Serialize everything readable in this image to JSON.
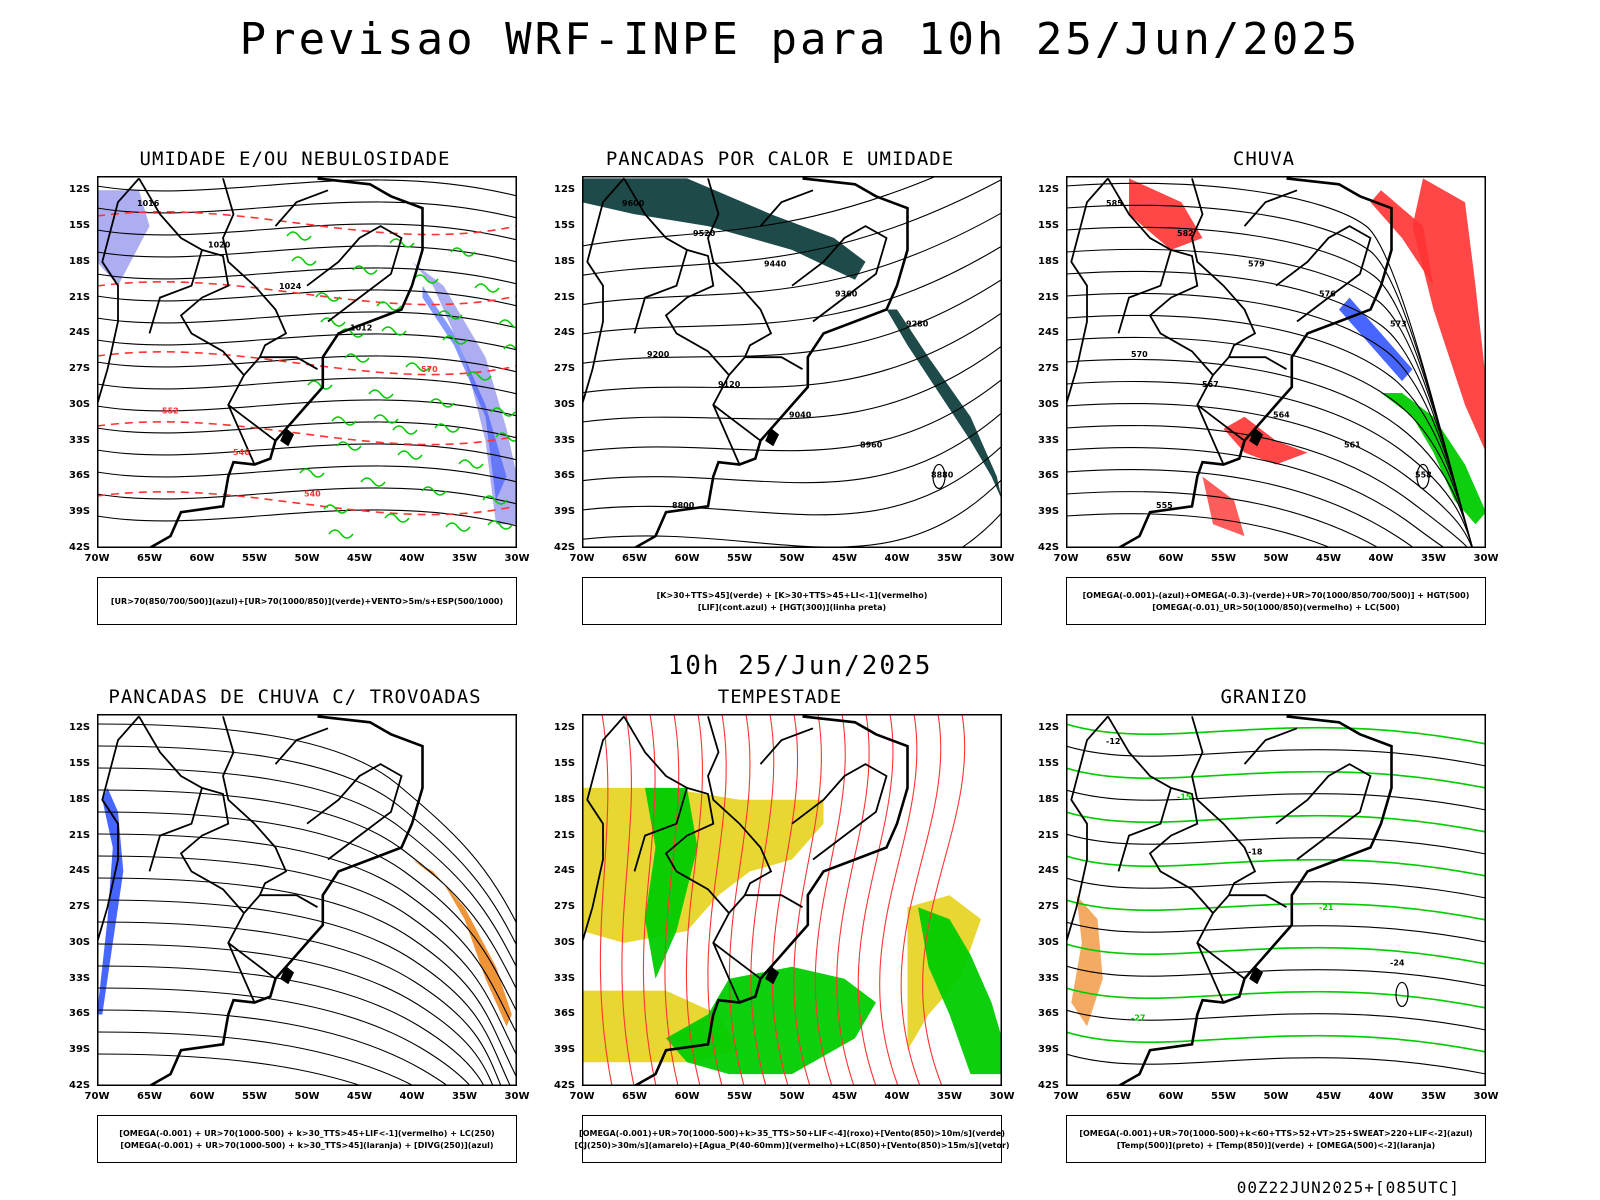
{
  "title": "Previsao WRF-INPE  para 10h 25/Jun/2025",
  "subtitle": "10h 25/Jun/2025",
  "footer": "00Z22JUN2025+[085UTC]",
  "lat_ticks": [
    "12S",
    "15S",
    "18S",
    "21S",
    "24S",
    "27S",
    "30S",
    "33S",
    "36S",
    "39S",
    "42S"
  ],
  "lon_ticks": [
    "70W",
    "65W",
    "60W",
    "55W",
    "50W",
    "45W",
    "40W",
    "35W",
    "30W"
  ],
  "colors": {
    "red": "#ff3333",
    "green": "#00cc00",
    "blue": "#3355ff",
    "dark": "#1e4a4a",
    "orange": "#ee8822",
    "yellow": "#e8d633",
    "lav": "#9999ee"
  },
  "panels": [
    {
      "title": "UMIDADE E/OU NEBULOSIDADE",
      "legend": [
        "[UR>70(850/700/500)](azul)+[UR>70(1000/850)](verde)+VENTO>5m/s+ESP(500/1000)"
      ],
      "contour_labels": [
        "1016",
        "1020",
        "1024",
        "1012",
        "570",
        "552",
        "546",
        "540"
      ]
    },
    {
      "title": "PANCADAS POR CALOR E UMIDADE",
      "legend": [
        "[K>30+TTS>45](verde) + [K>30+TTS>45+LI<-1](vermelho)",
        "[LIF](cont.azul) + [HGT(300)](linha preta)"
      ],
      "contour_labels": [
        "9600",
        "9520",
        "9440",
        "9360",
        "9280",
        "9200",
        "9120",
        "9040",
        "8960",
        "8880",
        "8800"
      ]
    },
    {
      "title": "CHUVA",
      "legend": [
        "[OMEGA(-0.001)-(azul)+OMEGA(-0.3)-(verde)+UR>70(1000/850/700/500)] + HGT(500)",
        "[OMEGA(-0.01)_UR>50(1000/850)(vermelho) + LC(500)"
      ],
      "contour_labels": [
        "585",
        "582",
        "579",
        "576",
        "573",
        "570",
        "567",
        "564",
        "561",
        "558",
        "555"
      ]
    },
    {
      "title": "PANCADAS DE CHUVA C/ TROVOADAS",
      "legend": [
        "[OMEGA(-0.001) + UR>70(1000-500) + k>30_TTS>45+LIF<-1](vermelho) + LC(250)",
        "[OMEGA(-0.001) + UR>70(1000-500) + k>30_TTS>45](laranja) + [DIVG(250)](azul)"
      ],
      "contour_labels": []
    },
    {
      "title": "TEMPESTADE",
      "legend": [
        "[OMEGA(-0.001)+UR>70(1000-500)+k>35_TTS>50+LIF<-4](roxo)+[Vento(850)>10m/s](verde)",
        "[CJ(250)>30m/s](amarelo)+[Agua_P(40-60mm)](vermelho)+LC(850)+[Vento(850)>15m/s](vetor)"
      ],
      "contour_labels": []
    },
    {
      "title": "GRANIZO",
      "legend": [
        "[OMEGA(-0.001)+UR>70(1000-500)+k<60+TTS>52+VT>25+SWEAT>220+LIF<-2](azul)",
        "[Temp(500)](preto) + [Temp(850)](verde) + [OMEGA(500)<-2](laranja)"
      ],
      "contour_labels": [
        "-12",
        "-15",
        "-18",
        "-21",
        "-24",
        "-27"
      ]
    }
  ]
}
